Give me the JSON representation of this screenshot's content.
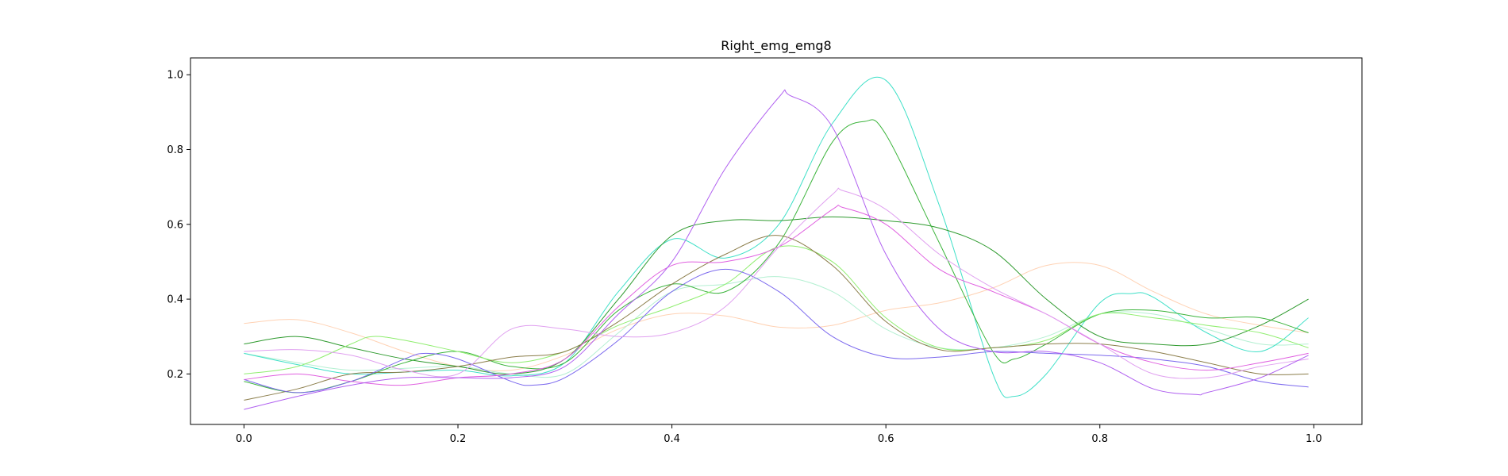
{
  "chart_data": {
    "type": "line",
    "title": "Right_emg_emg8",
    "xlabel": "",
    "ylabel": "",
    "xlim": [
      -0.05,
      1.045
    ],
    "ylim": [
      0.065,
      1.045
    ],
    "grid": false,
    "legend": "none",
    "xticks": [
      0.0,
      0.2,
      0.4,
      0.6,
      0.8,
      1.0
    ],
    "xtick_labels": [
      "0.0",
      "0.2",
      "0.4",
      "0.6",
      "0.8",
      "1.0"
    ],
    "yticks": [
      0.2,
      0.4,
      0.6,
      0.8,
      1.0
    ],
    "ytick_labels": [
      "0.2",
      "0.4",
      "0.6",
      "0.8",
      "1.0"
    ],
    "series": [
      {
        "color": "#ffd2b4",
        "x": [
          0.0,
          0.05,
          0.1,
          0.15,
          0.2,
          0.25,
          0.3,
          0.35,
          0.4,
          0.45,
          0.5,
          0.55,
          0.6,
          0.65,
          0.7,
          0.75,
          0.8,
          0.85,
          0.9,
          0.95,
          0.995
        ],
        "y": [
          0.335,
          0.345,
          0.31,
          0.26,
          0.22,
          0.21,
          0.25,
          0.32,
          0.36,
          0.355,
          0.325,
          0.33,
          0.37,
          0.39,
          0.43,
          0.49,
          0.49,
          0.42,
          0.36,
          0.33,
          0.31
        ]
      },
      {
        "color": "#b4f0d2",
        "x": [
          0.0,
          0.05,
          0.1,
          0.15,
          0.2,
          0.25,
          0.3,
          0.35,
          0.4,
          0.45,
          0.5,
          0.55,
          0.6,
          0.65,
          0.7,
          0.75,
          0.8,
          0.85,
          0.9,
          0.95,
          0.995
        ],
        "y": [
          0.255,
          0.23,
          0.21,
          0.215,
          0.22,
          0.2,
          0.2,
          0.31,
          0.42,
          0.44,
          0.46,
          0.42,
          0.32,
          0.27,
          0.27,
          0.3,
          0.36,
          0.36,
          0.32,
          0.28,
          0.28
        ]
      },
      {
        "color": "#40e0c8",
        "x": [
          0.0,
          0.05,
          0.1,
          0.15,
          0.2,
          0.25,
          0.3,
          0.35,
          0.4,
          0.45,
          0.5,
          0.55,
          0.6,
          0.65,
          0.7,
          0.72,
          0.75,
          0.8,
          0.83,
          0.85,
          0.9,
          0.95,
          0.995
        ],
        "y": [
          0.255,
          0.225,
          0.2,
          0.205,
          0.21,
          0.195,
          0.23,
          0.42,
          0.56,
          0.51,
          0.6,
          0.87,
          0.985,
          0.65,
          0.2,
          0.14,
          0.2,
          0.39,
          0.415,
          0.405,
          0.31,
          0.26,
          0.35
        ]
      },
      {
        "color": "#2e9a2e",
        "x": [
          0.0,
          0.05,
          0.1,
          0.15,
          0.2,
          0.25,
          0.3,
          0.35,
          0.4,
          0.45,
          0.5,
          0.55,
          0.6,
          0.65,
          0.7,
          0.75,
          0.8,
          0.85,
          0.9,
          0.95,
          0.995
        ],
        "y": [
          0.28,
          0.3,
          0.27,
          0.24,
          0.22,
          0.2,
          0.24,
          0.4,
          0.57,
          0.61,
          0.61,
          0.62,
          0.61,
          0.59,
          0.53,
          0.4,
          0.3,
          0.28,
          0.28,
          0.33,
          0.4
        ]
      },
      {
        "color": "#3cb43c",
        "x": [
          0.0,
          0.05,
          0.1,
          0.15,
          0.2,
          0.25,
          0.3,
          0.35,
          0.4,
          0.45,
          0.5,
          0.55,
          0.58,
          0.6,
          0.65,
          0.7,
          0.72,
          0.75,
          0.8,
          0.85,
          0.9,
          0.95,
          0.995
        ],
        "y": [
          0.18,
          0.15,
          0.18,
          0.23,
          0.26,
          0.22,
          0.23,
          0.37,
          0.44,
          0.42,
          0.55,
          0.82,
          0.875,
          0.84,
          0.55,
          0.26,
          0.24,
          0.28,
          0.36,
          0.37,
          0.35,
          0.35,
          0.31
        ]
      },
      {
        "color": "#90ee70",
        "x": [
          0.0,
          0.05,
          0.1,
          0.12,
          0.15,
          0.2,
          0.25,
          0.3,
          0.35,
          0.4,
          0.45,
          0.5,
          0.55,
          0.6,
          0.65,
          0.7,
          0.75,
          0.8,
          0.85,
          0.9,
          0.95,
          0.995
        ],
        "y": [
          0.2,
          0.22,
          0.28,
          0.3,
          0.29,
          0.26,
          0.23,
          0.26,
          0.33,
          0.38,
          0.44,
          0.54,
          0.5,
          0.35,
          0.27,
          0.27,
          0.29,
          0.36,
          0.35,
          0.33,
          0.31,
          0.27
        ]
      },
      {
        "color": "#8b7d4a",
        "x": [
          0.0,
          0.05,
          0.1,
          0.15,
          0.2,
          0.25,
          0.3,
          0.35,
          0.4,
          0.45,
          0.5,
          0.55,
          0.6,
          0.65,
          0.7,
          0.75,
          0.8,
          0.85,
          0.9,
          0.95,
          0.995
        ],
        "y": [
          0.13,
          0.16,
          0.2,
          0.205,
          0.22,
          0.245,
          0.26,
          0.34,
          0.44,
          0.52,
          0.57,
          0.49,
          0.34,
          0.265,
          0.27,
          0.28,
          0.28,
          0.26,
          0.23,
          0.2,
          0.2
        ]
      },
      {
        "color": "#7b68ee",
        "x": [
          0.0,
          0.05,
          0.1,
          0.15,
          0.17,
          0.2,
          0.25,
          0.27,
          0.3,
          0.35,
          0.4,
          0.45,
          0.5,
          0.55,
          0.6,
          0.65,
          0.7,
          0.75,
          0.8,
          0.85,
          0.9,
          0.95,
          0.995
        ],
        "y": [
          0.185,
          0.15,
          0.18,
          0.24,
          0.255,
          0.24,
          0.18,
          0.17,
          0.19,
          0.29,
          0.42,
          0.48,
          0.42,
          0.3,
          0.245,
          0.245,
          0.26,
          0.255,
          0.25,
          0.24,
          0.22,
          0.18,
          0.165
        ]
      },
      {
        "color": "#e060e0",
        "x": [
          0.0,
          0.05,
          0.1,
          0.15,
          0.2,
          0.25,
          0.3,
          0.35,
          0.4,
          0.45,
          0.5,
          0.55,
          0.56,
          0.6,
          0.65,
          0.7,
          0.75,
          0.8,
          0.85,
          0.9,
          0.95,
          0.995
        ],
        "y": [
          0.185,
          0.2,
          0.18,
          0.17,
          0.19,
          0.2,
          0.24,
          0.38,
          0.49,
          0.5,
          0.54,
          0.64,
          0.645,
          0.6,
          0.48,
          0.42,
          0.36,
          0.28,
          0.23,
          0.21,
          0.23,
          0.255
        ]
      },
      {
        "color": "#e0a0f0",
        "x": [
          0.0,
          0.05,
          0.1,
          0.15,
          0.2,
          0.25,
          0.3,
          0.35,
          0.4,
          0.45,
          0.5,
          0.55,
          0.56,
          0.6,
          0.65,
          0.7,
          0.75,
          0.8,
          0.85,
          0.9,
          0.95,
          0.995
        ],
        "y": [
          0.26,
          0.265,
          0.25,
          0.21,
          0.2,
          0.32,
          0.32,
          0.3,
          0.31,
          0.38,
          0.54,
          0.68,
          0.69,
          0.64,
          0.52,
          0.43,
          0.36,
          0.28,
          0.2,
          0.19,
          0.22,
          0.24
        ]
      },
      {
        "color": "#b060f0",
        "x": [
          0.0,
          0.05,
          0.1,
          0.15,
          0.2,
          0.25,
          0.3,
          0.35,
          0.4,
          0.45,
          0.5,
          0.51,
          0.55,
          0.6,
          0.65,
          0.7,
          0.75,
          0.8,
          0.85,
          0.89,
          0.9,
          0.95,
          0.995
        ],
        "y": [
          0.105,
          0.14,
          0.17,
          0.19,
          0.19,
          0.19,
          0.22,
          0.36,
          0.5,
          0.75,
          0.94,
          0.945,
          0.86,
          0.52,
          0.32,
          0.26,
          0.26,
          0.23,
          0.16,
          0.145,
          0.15,
          0.19,
          0.25
        ]
      }
    ]
  }
}
